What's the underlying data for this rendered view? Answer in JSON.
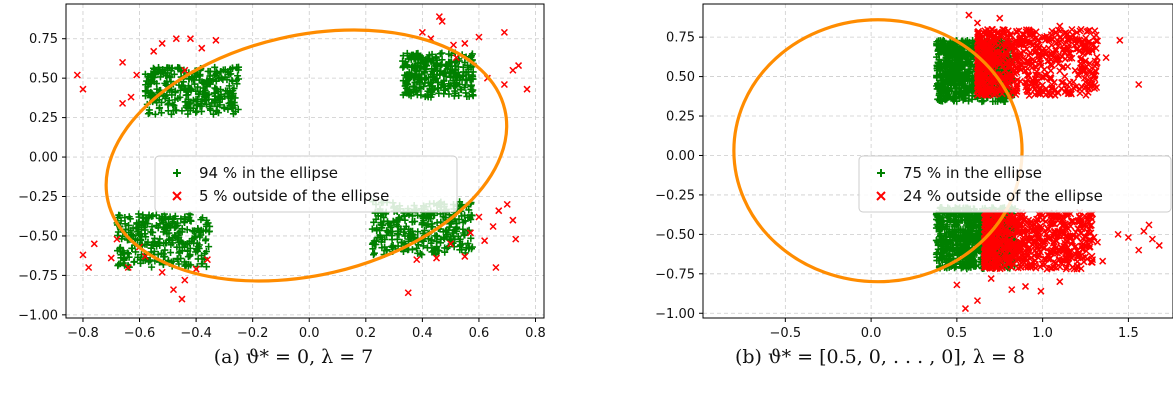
{
  "chart_data": [
    {
      "type": "scatter",
      "caption": "(a) ϑ* = 0, λ = 7",
      "xlim": [
        -0.86,
        0.83
      ],
      "ylim": [
        -1.02,
        0.97
      ],
      "xticks": [
        -0.8,
        -0.6,
        -0.4,
        -0.2,
        0.0,
        0.2,
        0.4,
        0.6,
        0.8
      ],
      "xtick_labels": [
        "−0.8",
        "−0.6",
        "−0.4",
        "−0.2",
        "0.0",
        "0.2",
        "0.4",
        "0.6",
        "0.8"
      ],
      "yticks": [
        0.75,
        0.5,
        0.25,
        0.0,
        -0.25,
        -0.5,
        -0.75,
        -1.0
      ],
      "ytick_labels": [
        "0.75",
        "0.50",
        "0.25",
        "0.00",
        "−0.25",
        "−0.50",
        "−0.75",
        "−1.00"
      ],
      "grid": true,
      "legend_position": "center",
      "colors": {
        "inside": "#008000",
        "outside": "#ff0000",
        "ellipse": "#ff8c00"
      },
      "ellipse": {
        "cx": -0.01,
        "cy": 0.01,
        "rx": 0.72,
        "ry": 0.76,
        "rotation_deg": 13
      },
      "series": [
        {
          "name": "94 % in the ellipse",
          "marker": "+",
          "clusters": [
            {
              "x": [
                -0.58,
                -0.25
              ],
              "y": [
                0.27,
                0.57
              ],
              "n": 320
            },
            {
              "x": [
                0.33,
                0.58
              ],
              "y": [
                0.38,
                0.66
              ],
              "n": 300
            },
            {
              "x": [
                -0.68,
                -0.35
              ],
              "y": [
                -0.7,
                -0.36
              ],
              "n": 300
            },
            {
              "x": [
                0.22,
                0.58
              ],
              "y": [
                -0.62,
                -0.28
              ],
              "n": 320
            }
          ]
        },
        {
          "name": "5 % outside of the ellipse",
          "marker": "x",
          "points": [
            [
              -0.82,
              0.52
            ],
            [
              -0.8,
              0.43
            ],
            [
              -0.66,
              0.6
            ],
            [
              -0.61,
              0.52
            ],
            [
              -0.55,
              0.67
            ],
            [
              -0.52,
              0.72
            ],
            [
              -0.47,
              0.75
            ],
            [
              -0.42,
              0.75
            ],
            [
              -0.38,
              0.69
            ],
            [
              -0.33,
              0.74
            ],
            [
              -0.66,
              0.34
            ],
            [
              -0.63,
              0.38
            ],
            [
              -0.44,
              0.55
            ],
            [
              0.4,
              0.79
            ],
            [
              0.43,
              0.75
            ],
            [
              0.46,
              0.89
            ],
            [
              0.47,
              0.86
            ],
            [
              0.51,
              0.71
            ],
            [
              0.55,
              0.72
            ],
            [
              0.6,
              0.76
            ],
            [
              0.69,
              0.79
            ],
            [
              0.72,
              0.55
            ],
            [
              0.74,
              0.58
            ],
            [
              0.77,
              0.43
            ],
            [
              0.69,
              0.46
            ],
            [
              0.52,
              0.63
            ],
            [
              0.63,
              0.5
            ],
            [
              -0.8,
              -0.62
            ],
            [
              -0.78,
              -0.7
            ],
            [
              -0.76,
              -0.55
            ],
            [
              -0.7,
              -0.64
            ],
            [
              -0.64,
              -0.7
            ],
            [
              -0.58,
              -0.63
            ],
            [
              -0.52,
              -0.73
            ],
            [
              -0.48,
              -0.84
            ],
            [
              -0.45,
              -0.9
            ],
            [
              -0.44,
              -0.78
            ],
            [
              -0.68,
              -0.52
            ],
            [
              -0.6,
              -0.57
            ],
            [
              -0.4,
              -0.71
            ],
            [
              -0.36,
              -0.65
            ],
            [
              0.35,
              -0.86
            ],
            [
              0.38,
              -0.65
            ],
            [
              0.45,
              -0.64
            ],
            [
              0.55,
              -0.63
            ],
            [
              0.57,
              -0.48
            ],
            [
              0.62,
              -0.53
            ],
            [
              0.65,
              -0.44
            ],
            [
              0.67,
              -0.34
            ],
            [
              0.7,
              -0.3
            ],
            [
              0.72,
              -0.4
            ],
            [
              0.73,
              -0.52
            ],
            [
              0.66,
              -0.7
            ],
            [
              0.6,
              -0.38
            ],
            [
              0.5,
              -0.55
            ]
          ]
        }
      ]
    },
    {
      "type": "scatter",
      "caption": "(b) ϑ* = [0.5, 0, . . . , 0], λ = 8",
      "xlim": [
        -0.98,
        1.76
      ],
      "ylim": [
        -1.03,
        0.96
      ],
      "xticks": [
        -0.5,
        0.0,
        0.5,
        1.0,
        1.5
      ],
      "xtick_labels": [
        "−0.5",
        "0.0",
        "0.5",
        "1.0",
        "1.5"
      ],
      "yticks": [
        0.75,
        0.5,
        0.25,
        0.0,
        -0.25,
        -0.5,
        -0.75,
        -1.0
      ],
      "ytick_labels": [
        "0.75",
        "0.50",
        "0.25",
        "0.00",
        "−0.25",
        "−0.50",
        "−0.75",
        "−1.00"
      ],
      "grid": true,
      "legend_position": "center-right",
      "colors": {
        "inside": "#008000",
        "outside": "#ff0000",
        "ellipse": "#ff8c00"
      },
      "ellipse": {
        "cx": 0.04,
        "cy": 0.03,
        "rx": 0.84,
        "ry": 0.83,
        "rotation_deg": 0
      },
      "series": [
        {
          "name": "75 % in the ellipse",
          "marker": "+",
          "clusters": [
            {
              "x": [
                0.38,
                0.82
              ],
              "y": [
                0.34,
                0.73
              ],
              "n": 900
            },
            {
              "x": [
                0.38,
                0.84
              ],
              "y": [
                -0.72,
                -0.33
              ],
              "n": 900
            }
          ]
        },
        {
          "name": "24 % outside of the ellipse",
          "marker": "x",
          "clusters": [
            {
              "x": [
                0.62,
                1.32
              ],
              "y": [
                0.38,
                0.8
              ],
              "n": 700
            },
            {
              "x": [
                0.66,
                1.3
              ],
              "y": [
                -0.72,
                -0.36
              ],
              "n": 700
            }
          ],
          "points": [
            [
              0.57,
              0.89
            ],
            [
              0.62,
              0.84
            ],
            [
              0.75,
              0.87
            ],
            [
              1.1,
              0.82
            ],
            [
              1.2,
              0.78
            ],
            [
              1.3,
              0.75
            ],
            [
              1.37,
              0.62
            ],
            [
              1.45,
              0.73
            ],
            [
              1.56,
              0.45
            ],
            [
              1.25,
              0.6
            ],
            [
              0.55,
              -0.97
            ],
            [
              0.62,
              -0.92
            ],
            [
              0.82,
              -0.85
            ],
            [
              0.9,
              -0.83
            ],
            [
              0.99,
              -0.86
            ],
            [
              1.1,
              -0.8
            ],
            [
              1.2,
              -0.72
            ],
            [
              1.32,
              -0.55
            ],
            [
              1.44,
              -0.5
            ],
            [
              1.5,
              -0.52
            ],
            [
              1.56,
              -0.6
            ],
            [
              1.59,
              -0.48
            ],
            [
              1.64,
              -0.53
            ],
            [
              1.68,
              -0.57
            ],
            [
              1.62,
              -0.44
            ],
            [
              1.35,
              -0.67
            ],
            [
              0.7,
              -0.78
            ],
            [
              0.5,
              -0.82
            ]
          ]
        }
      ]
    }
  ]
}
